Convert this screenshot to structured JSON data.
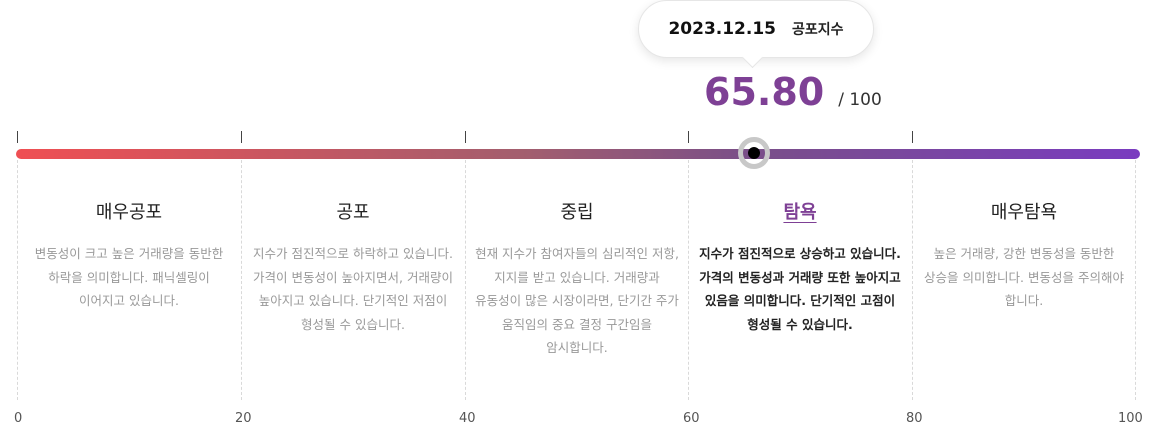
{
  "tooltip": {
    "date": "2023.12.15",
    "label": "공포지수"
  },
  "score": {
    "value": "65.80",
    "max": "/ 100",
    "fraction": 0.658
  },
  "zones": [
    {
      "title": "매우공포",
      "description": "변동성이 크고 높은 거래량을 동반한 하락을 의미합니다. 패닉셀링이 이어지고 있습니다.",
      "active": false
    },
    {
      "title": "공포",
      "description": "지수가 점진적으로 하락하고 있습니다. 가격이 변동성이 높아지면서, 거래량이 높아지고 있습니다. 단기적인 저점이 형성될 수 있습니다.",
      "active": false
    },
    {
      "title": "중립",
      "description": "현재 지수가 참여자들의 심리적인 저항, 지지를 받고 있습니다. 거래량과 유동성이 많은 시장이라면, 단기간 주가 움직임의 중요 결정 구간임을 암시합니다.",
      "active": false
    },
    {
      "title": "탐욕",
      "description": "지수가 점진적으로 상승하고 있습니다. 가격의 변동성과 거래량 또한 높아지고 있음을 의미합니다. 단기적인 고점이 형성될 수 있습니다.",
      "active": true
    },
    {
      "title": "매우탐욕",
      "description": "높은 거래량, 강한 변동성을 동반한 상승을 의미합니다. 변동성을 주의해야 합니다.",
      "active": false
    }
  ],
  "axis": [
    "0",
    "20",
    "40",
    "60",
    "80",
    "100"
  ],
  "colors": {
    "accent": "#7e4095",
    "bar_start": "#ef4f53",
    "bar_end": "#7a3cc0"
  }
}
